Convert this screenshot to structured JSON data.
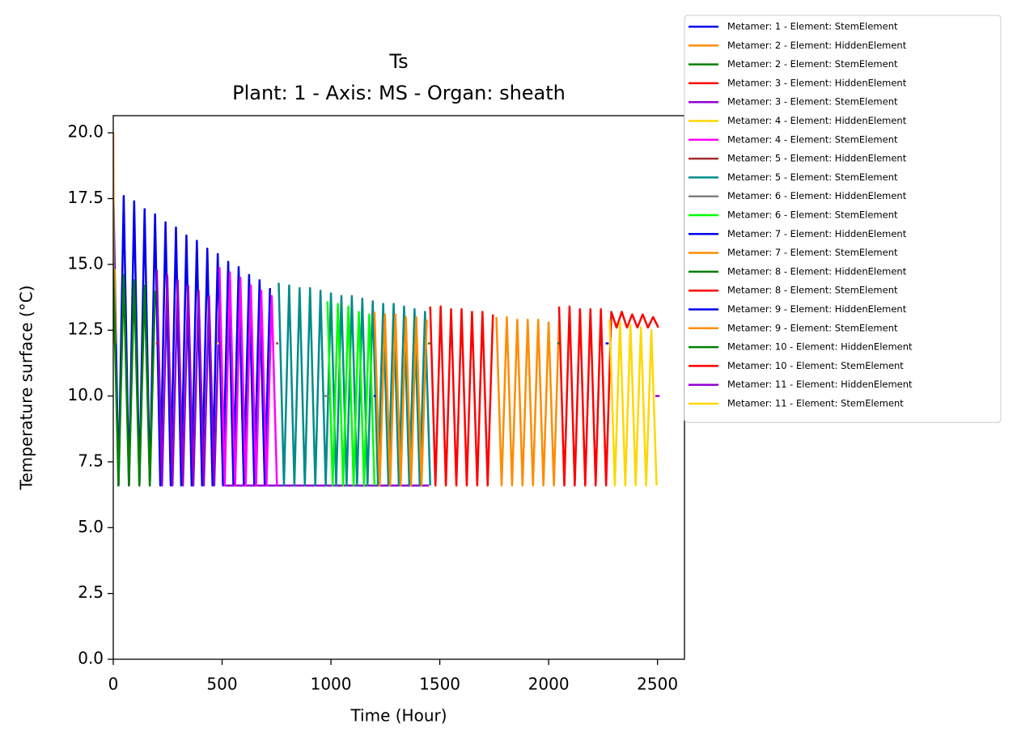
{
  "chart_data": {
    "type": "line",
    "title": "Ts",
    "subtitle": "Plant: 1 - Axis: MS - Organ: sheath",
    "x_label": "Time (Hour)",
    "y_label": "Temperature surface (°C)",
    "xlim": [
      0,
      2624
    ],
    "ylim": [
      0,
      20.65
    ],
    "xticks": [
      0,
      500,
      1000,
      1500,
      2000,
      2500
    ],
    "yticks": [
      {
        "value": 0,
        "label": "0.0"
      },
      {
        "value": 2.5,
        "label": "2.5"
      },
      {
        "value": 5,
        "label": "5.0"
      },
      {
        "value": 7.5,
        "label": "7.5"
      },
      {
        "value": 10,
        "label": "10.0"
      },
      {
        "value": 12.5,
        "label": "12.5"
      },
      {
        "value": 15,
        "label": "15.0"
      },
      {
        "value": 17.5,
        "label": "17.5"
      },
      {
        "value": 20,
        "label": "20.0"
      }
    ],
    "legend": "outside-upper-right",
    "series": [
      {
        "name": "Metamer: 1 - Element: StemElement",
        "color": "#0000ee",
        "x": [
          0,
          24,
          48,
          72,
          96,
          120,
          144,
          168,
          192,
          216,
          240,
          264,
          288,
          312,
          336,
          360,
          384,
          408,
          432,
          456,
          480,
          504,
          528,
          552,
          576,
          600,
          624,
          648,
          672,
          696,
          720
        ],
        "values": [
          17.9,
          6.6,
          17.6,
          6.6,
          17.4,
          6.6,
          17.1,
          6.6,
          16.9,
          6.6,
          16.6,
          6.6,
          16.4,
          6.6,
          16.1,
          6.6,
          15.9,
          6.6,
          15.6,
          6.6,
          15.4,
          6.6,
          15.1,
          6.6,
          14.9,
          6.6,
          14.6,
          6.6,
          14.4,
          6.6,
          14.1
        ]
      },
      {
        "name": "Metamer: 2 - Element: HiddenElement",
        "color": "#ff8c00",
        "x": [
          0,
          3,
          6,
          10
        ],
        "values": [
          20,
          12,
          14.8,
          12
        ]
      },
      {
        "name": "Metamer: 2 - Element: StemElement",
        "color": "#008000",
        "x": [
          0,
          24,
          48,
          72,
          96,
          120,
          144,
          168,
          192
        ],
        "values": [
          14.8,
          6.6,
          14.6,
          6.6,
          14.4,
          6.6,
          14.2,
          6.6,
          14.0
        ]
      },
      {
        "name": "Metamer: 3 - Element: HiddenElement",
        "color": "#ff0000",
        "x": [
          196,
          204
        ],
        "values": [
          12,
          12
        ]
      },
      {
        "name": "Metamer: 3 - Element: StemElement",
        "color": "#9400d3",
        "x": [
          200,
          224,
          248,
          272,
          296,
          320,
          344,
          368,
          392,
          416,
          440,
          464,
          488,
          512,
          1450
        ],
        "values": [
          14.8,
          6.6,
          14.6,
          6.6,
          14.4,
          6.6,
          14.2,
          6.6,
          14.0,
          6.6,
          13.8,
          6.6,
          13.7,
          6.6,
          6.6
        ]
      },
      {
        "name": "Metamer: 4 - Element: HiddenElement",
        "color": "#ffd700",
        "x": [
          476,
          486
        ],
        "values": [
          12,
          12
        ]
      },
      {
        "name": "Metamer: 4 - Element: StemElement",
        "color": "#ff00ff",
        "x": [
          488,
          512,
          536,
          560,
          584,
          608,
          632,
          656,
          680,
          704,
          728,
          752
        ],
        "values": [
          14.9,
          6.6,
          14.7,
          6.6,
          14.5,
          6.6,
          14.2,
          6.6,
          14.0,
          6.6,
          13.8,
          6.6
        ]
      },
      {
        "name": "Metamer: 5 - Element: HiddenElement",
        "color": "#a52a2a",
        "x": [
          748,
          758
        ],
        "values": [
          12,
          12
        ]
      },
      {
        "name": "Metamer: 5 - Element: StemElement",
        "color": "#008b8b",
        "x": [
          760,
          784,
          808,
          832,
          856,
          880,
          904,
          928,
          952,
          976,
          1000,
          1024,
          1048,
          1072,
          1096,
          1120,
          1144,
          1168,
          1192,
          1216,
          1240,
          1264,
          1288,
          1312,
          1336,
          1360,
          1384,
          1408,
          1432,
          1456
        ],
        "values": [
          14.3,
          6.6,
          14.2,
          6.6,
          14.1,
          6.6,
          14.1,
          6.6,
          14.0,
          6.6,
          13.9,
          6.6,
          13.8,
          6.6,
          13.8,
          6.6,
          13.7,
          6.6,
          13.6,
          6.6,
          13.5,
          6.6,
          13.5,
          6.6,
          13.4,
          6.6,
          13.3,
          6.6,
          13.2,
          6.6
        ]
      },
      {
        "name": "Metamer: 6 - Element: HiddenElement",
        "color": "#808080",
        "x": [
          970,
          990
        ],
        "values": [
          10,
          10
        ]
      },
      {
        "name": "Metamer: 6 - Element: StemElement",
        "color": "#00ff00",
        "x": [
          984,
          1008,
          1032,
          1056,
          1080,
          1104,
          1128,
          1152,
          1176,
          1200
        ],
        "values": [
          13.6,
          6.6,
          13.5,
          6.6,
          13.4,
          6.6,
          13.2,
          6.6,
          13.1,
          6.6
        ]
      },
      {
        "name": "Metamer: 7 - Element: HiddenElement",
        "color": "#0000ee",
        "x": [
          1196,
          1206
        ],
        "values": [
          10,
          10
        ]
      },
      {
        "name": "Metamer: 7 - Element: StemElement",
        "color": "#ff8c00",
        "x": [
          1200,
          1224,
          1248,
          1272,
          1296,
          1320,
          1344,
          1368,
          1392,
          1416,
          1440
        ],
        "values": [
          13.2,
          6.6,
          13.1,
          6.6,
          13.1,
          6.6,
          13.0,
          6.6,
          13.0,
          6.6,
          12.9
        ]
      },
      {
        "name": "Metamer: 8 - Element: HiddenElement",
        "color": "#008000",
        "x": [
          1446,
          1456
        ],
        "values": [
          12,
          12
        ]
      },
      {
        "name": "Metamer: 8 - Element: StemElement",
        "color": "#ff0000",
        "x": [
          1456,
          1480,
          1504,
          1528,
          1552,
          1576,
          1600,
          1624,
          1648,
          1672,
          1696,
          1720,
          1744
        ],
        "values": [
          13.4,
          6.6,
          13.4,
          6.6,
          13.3,
          6.6,
          13.3,
          6.6,
          13.2,
          6.6,
          13.2,
          6.6,
          13.1
        ]
      },
      {
        "name": "Metamer: 9 - Element: HiddenElement",
        "color": "#0000ee",
        "x": [
          2262,
          2276
        ],
        "values": [
          12,
          12
        ]
      },
      {
        "name": "Metamer: 9 - Element: StemElement",
        "color": "#ff8c00",
        "x": [
          1760,
          1784,
          1808,
          1832,
          1856,
          1880,
          1904,
          1928,
          1952,
          1976,
          2000,
          2024,
          2048
        ],
        "values": [
          13.0,
          6.6,
          13.0,
          6.6,
          12.9,
          6.6,
          12.9,
          6.6,
          12.9,
          6.6,
          12.8,
          6.6,
          12.9
        ]
      },
      {
        "name": "Metamer: 10 - Element: HiddenElement",
        "color": "#008000",
        "x": [
          2040,
          2050
        ],
        "values": [
          12,
          12
        ]
      },
      {
        "name": "Metamer: 10 - Element: StemElement",
        "color": "#ff0000",
        "x": [
          2048,
          2072,
          2096,
          2120,
          2144,
          2168,
          2192,
          2216,
          2240,
          2264,
          2288,
          2312,
          2336,
          2360,
          2384,
          2408,
          2432,
          2456,
          2480,
          2504
        ],
        "values": [
          13.4,
          6.6,
          13.4,
          6.6,
          13.3,
          6.6,
          13.3,
          6.6,
          13.3,
          6.6,
          13.2,
          12.6,
          13.2,
          12.6,
          13.1,
          12.6,
          13.1,
          12.6,
          13.0,
          12.6
        ]
      },
      {
        "name": "Metamer: 11 - Element: HiddenElement",
        "color": "#9400d3",
        "x": [
          2490,
          2510
        ],
        "values": [
          10,
          10
        ]
      },
      {
        "name": "Metamer: 11 - Element: StemElement",
        "color": "#ffd700",
        "x": [
          2280,
          2304,
          2328,
          2352,
          2376,
          2400,
          2424,
          2448,
          2472,
          2496
        ],
        "values": [
          12.9,
          6.6,
          12.8,
          6.6,
          12.7,
          6.6,
          12.6,
          6.6,
          12.5,
          6.6
        ]
      }
    ]
  }
}
